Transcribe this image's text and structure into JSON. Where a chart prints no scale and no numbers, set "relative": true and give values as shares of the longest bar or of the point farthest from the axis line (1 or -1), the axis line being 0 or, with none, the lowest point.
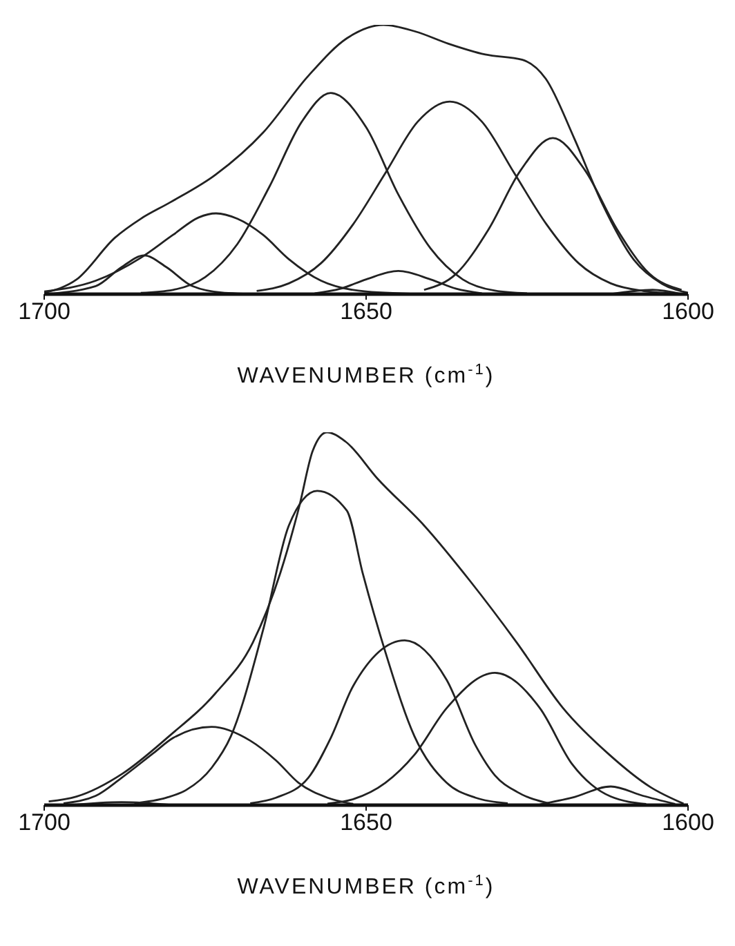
{
  "chart_data": [
    {
      "type": "line",
      "relative": true,
      "xlabel": "WAVENUMBER (cm$^{-1}$)",
      "xlim": [
        1700,
        1600
      ],
      "xticks": [
        1700,
        1650,
        1600
      ],
      "marker": "none",
      "line_style": "solid",
      "series": [
        {
          "color": "#222222",
          "x": [
            1700,
            1695,
            1689,
            1685,
            1680.5,
            1673.3,
            1666,
            1659,
            1653,
            1647.3,
            1642.3,
            1637.2,
            1631.5,
            1625.7,
            1622.1,
            1617.7,
            1613.4,
            1608.4,
            1604,
            1600
          ],
          "values": [
            0.005,
            0.054,
            0.21,
            0.28,
            0.34,
            0.445,
            0.6,
            0.81,
            0.95,
            1,
            0.975,
            0.93,
            0.89,
            0.87,
            0.8,
            0.58,
            0.34,
            0.127,
            0.038,
            0.005
          ]
        },
        {
          "color": "#222222",
          "x": [
            1700,
            1692,
            1688,
            1684.5,
            1681,
            1677,
            1672,
            1665
          ],
          "values": [
            0,
            0.03,
            0.1,
            0.144,
            0.1,
            0.03,
            0.005,
            0
          ]
        },
        {
          "color": "#222222",
          "x": [
            1700,
            1692,
            1685,
            1680,
            1676,
            1673.3,
            1670,
            1666,
            1662,
            1657,
            1650,
            1640
          ],
          "values": [
            0.01,
            0.05,
            0.135,
            0.22,
            0.285,
            0.3,
            0.28,
            0.22,
            0.13,
            0.05,
            0.01,
            0
          ]
        },
        {
          "color": "#222222",
          "x": [
            1685,
            1680,
            1675,
            1670,
            1665,
            1660,
            1655.5,
            1650,
            1645,
            1640,
            1635,
            1630,
            1625
          ],
          "values": [
            0.005,
            0.016,
            0.063,
            0.186,
            0.4,
            0.64,
            0.747,
            0.62,
            0.37,
            0.17,
            0.055,
            0.013,
            0.003
          ]
        },
        {
          "color": "#222222",
          "x": [
            1667,
            1662,
            1657,
            1652,
            1647,
            1642,
            1637,
            1632,
            1627,
            1622,
            1617,
            1612,
            1607,
            1602
          ],
          "values": [
            0.012,
            0.04,
            0.115,
            0.26,
            0.45,
            0.64,
            0.715,
            0.64,
            0.45,
            0.26,
            0.115,
            0.04,
            0.012,
            0.003
          ]
        },
        {
          "color": "#222222",
          "x": [
            1641,
            1636,
            1631,
            1626,
            1621,
            1616,
            1611,
            1606,
            1601
          ],
          "values": [
            0.016,
            0.076,
            0.24,
            0.46,
            0.58,
            0.46,
            0.24,
            0.076,
            0.016
          ]
        },
        {
          "color": "#222222",
          "x": [
            1658,
            1654,
            1650,
            1645,
            1640,
            1636,
            1632
          ],
          "values": [
            0.003,
            0.02,
            0.055,
            0.086,
            0.055,
            0.02,
            0.003
          ]
        },
        {
          "color": "#222222",
          "x": [
            1612,
            1605.5,
            1601
          ],
          "values": [
            0,
            0.016,
            0
          ]
        }
      ]
    },
    {
      "type": "line",
      "relative": true,
      "xlabel": "WAVENUMBER (cm$^{-1}$)",
      "xlim": [
        1700,
        1600
      ],
      "xticks": [
        1700,
        1650,
        1600
      ],
      "marker": "none",
      "line_style": "solid",
      "series": [
        {
          "color": "#222222",
          "x": [
            1699.3,
            1695,
            1687.8,
            1680.6,
            1673.4,
            1667.6,
            1663.3,
            1660.4,
            1658.3,
            1656.1,
            1653.2,
            1648.2,
            1641,
            1633.8,
            1626.6,
            1619.4,
            1612.2,
            1605.8,
            1600.7
          ],
          "values": [
            0.01,
            0.023,
            0.085,
            0.185,
            0.3,
            0.436,
            0.624,
            0.8,
            0.95,
            1,
            0.975,
            0.875,
            0.75,
            0.6,
            0.436,
            0.26,
            0.135,
            0.048,
            0.004
          ]
        },
        {
          "color": "#222222",
          "x": [
            1686,
            1681,
            1678,
            1674,
            1671,
            1666,
            1662,
            1657.6,
            1653,
            1650.5,
            1647,
            1642.5,
            1637.5,
            1633,
            1628
          ],
          "values": [
            0.005,
            0.02,
            0.04,
            0.1,
            0.185,
            0.47,
            0.75,
            0.843,
            0.79,
            0.62,
            0.41,
            0.185,
            0.06,
            0.02,
            0.005
          ]
        },
        {
          "color": "#222222",
          "x": [
            1697,
            1692,
            1688,
            1683,
            1680,
            1674,
            1668,
            1664,
            1660.5,
            1656,
            1652
          ],
          "values": [
            0.005,
            0.025,
            0.073,
            0.14,
            0.18,
            0.21,
            0.173,
            0.12,
            0.06,
            0.02,
            0.003
          ]
        },
        {
          "color": "#222222",
          "x": [
            1668,
            1664,
            1659,
            1655.5,
            1652,
            1644,
            1637.5,
            1633,
            1630,
            1626.5,
            1621.5
          ],
          "values": [
            0.005,
            0.02,
            0.073,
            0.18,
            0.32,
            0.442,
            0.336,
            0.16,
            0.08,
            0.035,
            0.004
          ]
        },
        {
          "color": "#222222",
          "x": [
            1656,
            1652,
            1647,
            1642.5,
            1637.5,
            1630,
            1623,
            1618,
            1615,
            1612,
            1606.5
          ],
          "values": [
            0.004,
            0.016,
            0.06,
            0.135,
            0.26,
            0.355,
            0.26,
            0.11,
            0.055,
            0.023,
            0.003
          ]
        },
        {
          "color": "#222222",
          "x": [
            1623,
            1618,
            1612,
            1607,
            1602
          ],
          "values": [
            0.002,
            0.02,
            0.05,
            0.025,
            0.003
          ]
        },
        {
          "color": "#222222",
          "x": [
            1696,
            1688,
            1680
          ],
          "values": [
            0,
            0.008,
            0
          ]
        }
      ]
    }
  ]
}
